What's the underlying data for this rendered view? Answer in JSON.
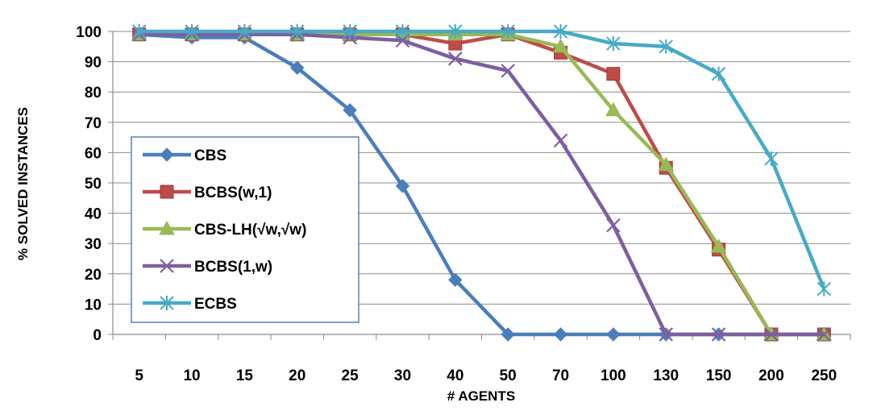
{
  "chart_data": {
    "type": "line",
    "title": "",
    "xlabel": "# AGENTS",
    "ylabel": "% SOLVED INSTANCES",
    "categories": [
      "5",
      "10",
      "15",
      "20",
      "25",
      "30",
      "40",
      "50",
      "70",
      "100",
      "130",
      "150",
      "200",
      "250"
    ],
    "ylim": [
      0,
      100
    ],
    "yticks": [
      0,
      10,
      20,
      30,
      40,
      50,
      60,
      70,
      80,
      90,
      100
    ],
    "grid": "horizontal",
    "legend_position": "left-middle",
    "series": [
      {
        "name": "CBS",
        "color": "#4a7ebb",
        "marker": "diamond",
        "values": [
          99,
          98,
          98,
          88,
          74,
          49,
          18,
          0,
          0,
          0,
          0,
          0,
          0,
          0
        ]
      },
      {
        "name": "BCBS(w,1)",
        "color": "#be4b48",
        "marker": "square",
        "values": [
          99,
          99,
          99,
          99,
          99,
          99,
          96,
          99,
          93,
          86,
          55,
          28,
          0,
          0
        ]
      },
      {
        "name": "CBS-LH(√w,√w)",
        "color": "#98b954",
        "marker": "triangle",
        "values": [
          99,
          99,
          99,
          99,
          99,
          99,
          99,
          99,
          95,
          74,
          56,
          29,
          0,
          0
        ]
      },
      {
        "name": "BCBS(1,w)",
        "color": "#7d5fa0",
        "marker": "x",
        "values": [
          99,
          99,
          99,
          99,
          98,
          97,
          91,
          87,
          64,
          36,
          0,
          0,
          0,
          0
        ]
      },
      {
        "name": "ECBS",
        "color": "#46aac5",
        "marker": "asterisk",
        "values": [
          100,
          100,
          100,
          100,
          100,
          100,
          100,
          100,
          100,
          96,
          95,
          86,
          58,
          15
        ]
      }
    ]
  }
}
